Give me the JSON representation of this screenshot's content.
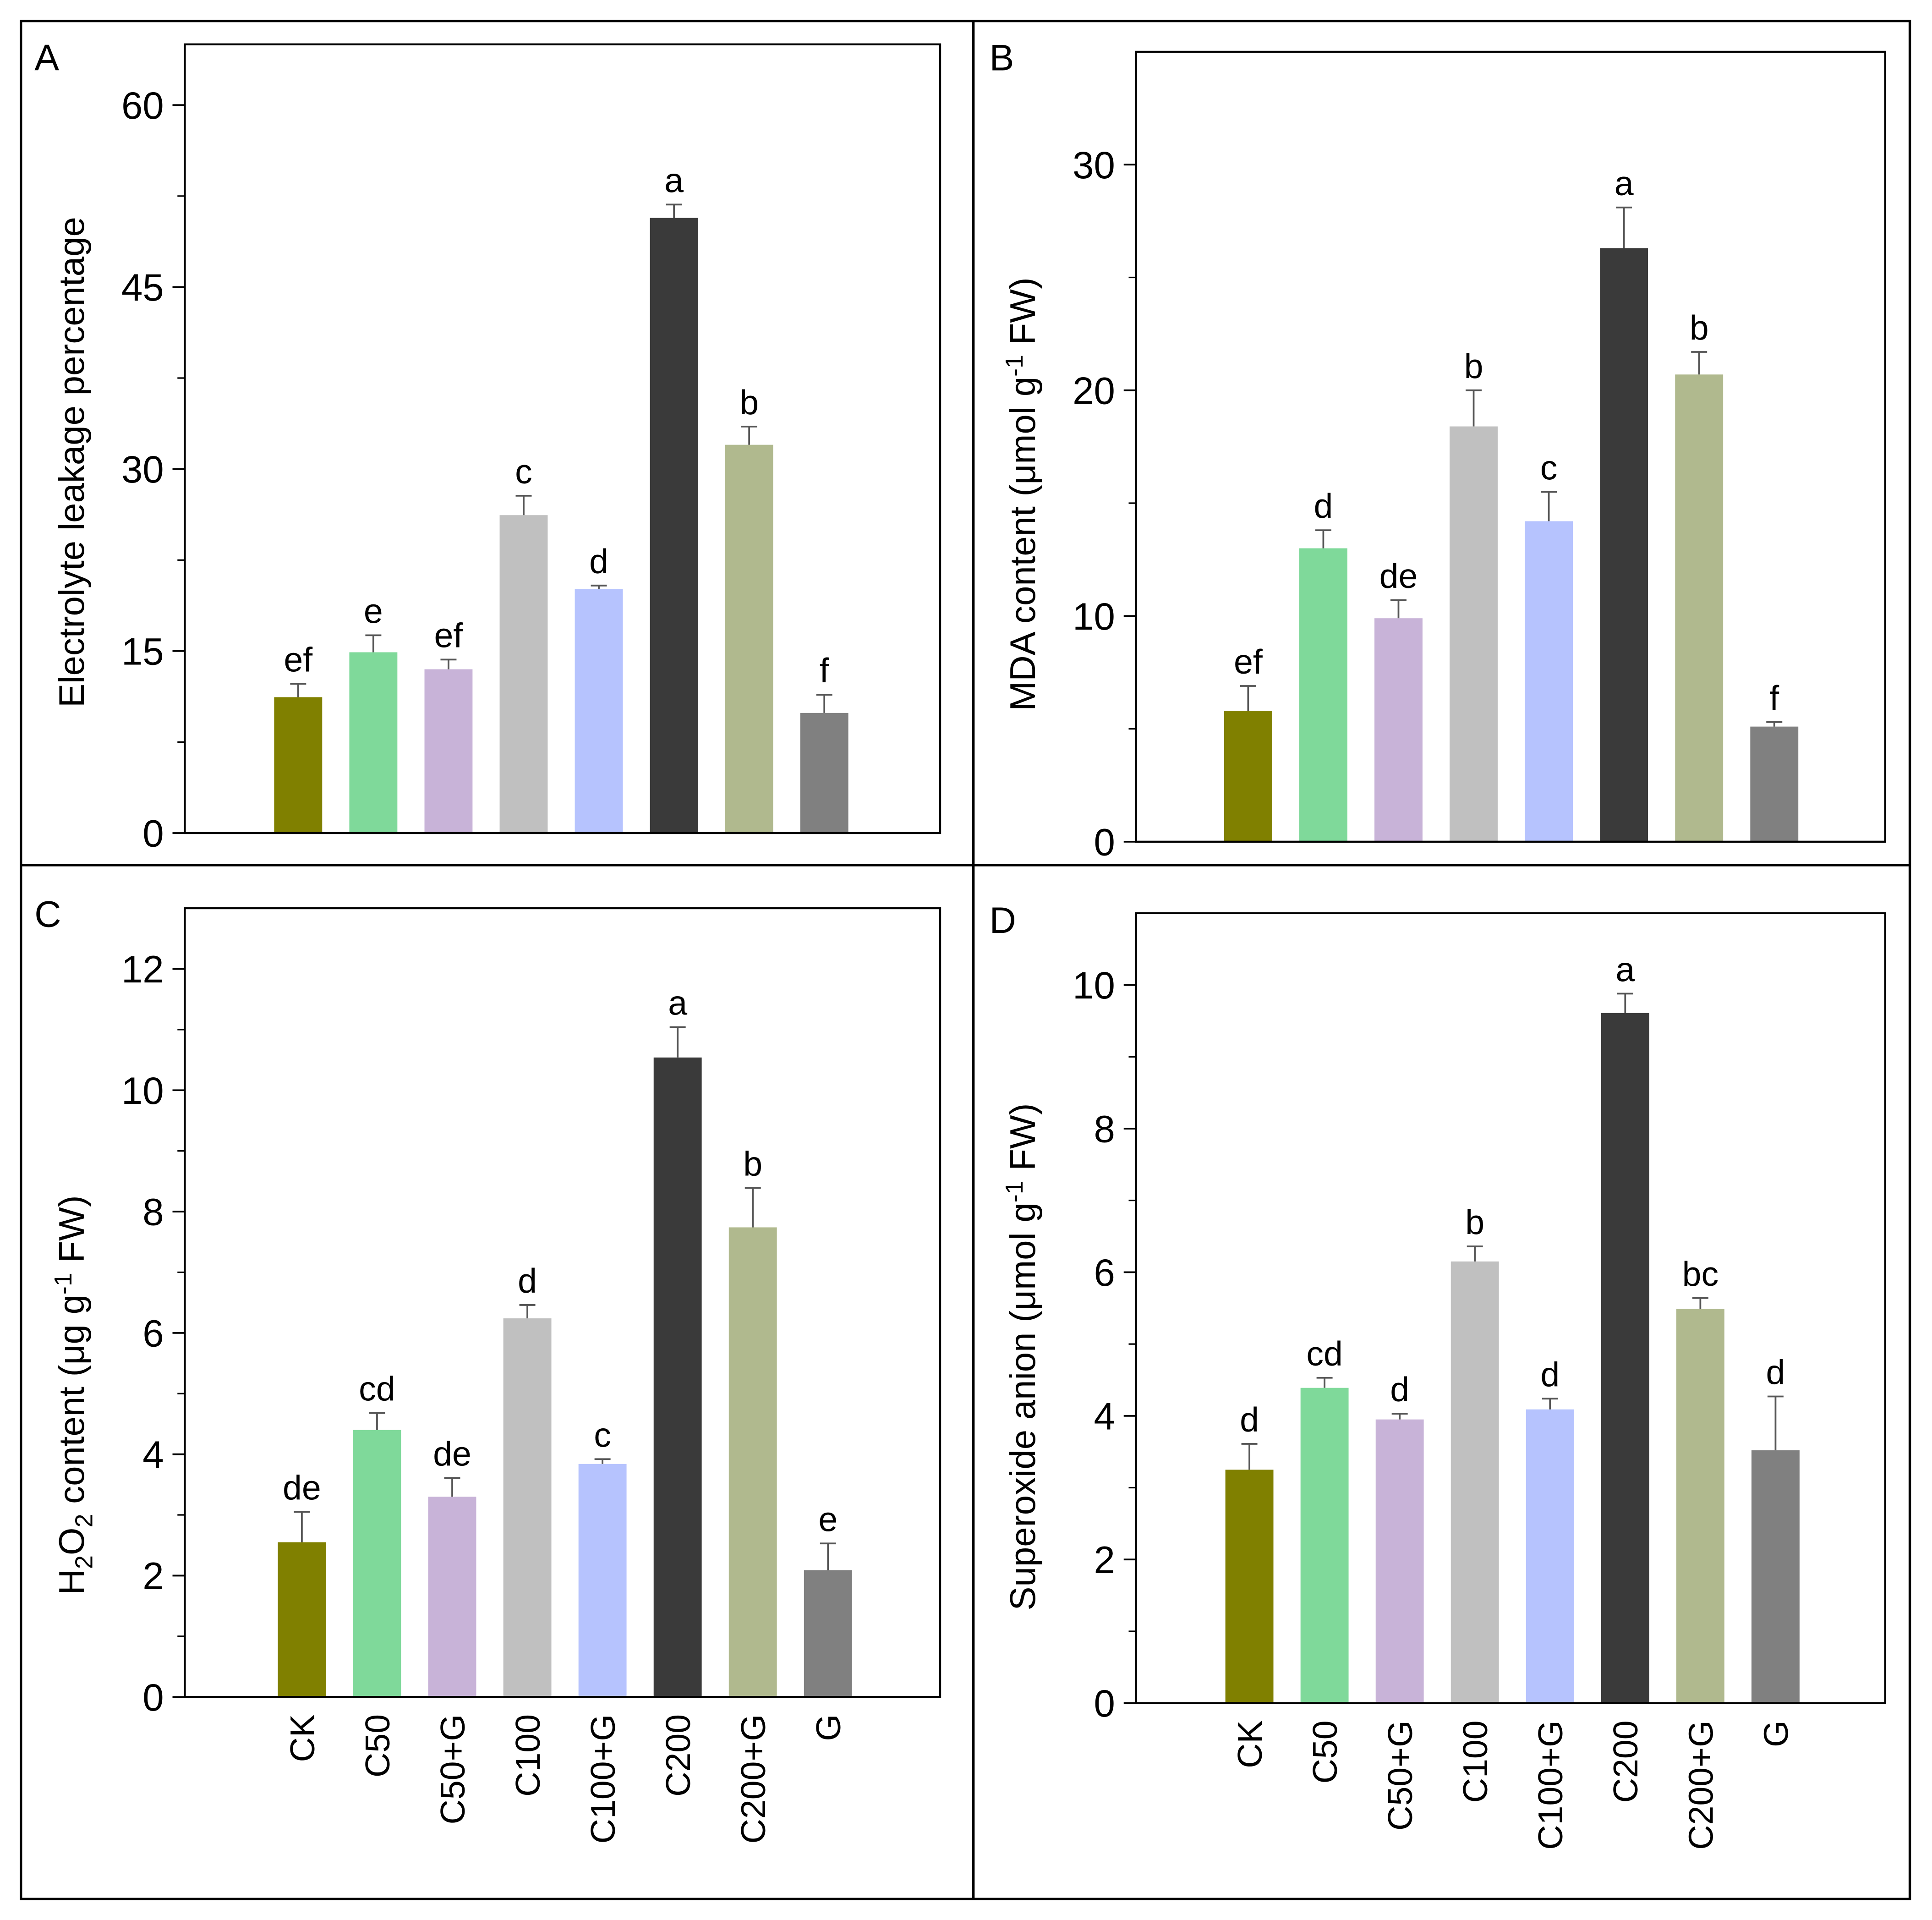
{
  "chart_data": [
    {
      "panel_label": "A",
      "type": "bar",
      "title": "",
      "xlabel": "",
      "ylabel_parts": [
        "Electrolyte leakage percentage"
      ],
      "categories": [
        "CK",
        "C50",
        "C50+G",
        "C100",
        "C100+G",
        "C200",
        "C200+G",
        "G"
      ],
      "values": [
        11.2,
        14.9,
        13.5,
        26.2,
        20.1,
        50.7,
        32.0,
        9.9
      ],
      "errors": [
        1.1,
        1.4,
        0.8,
        1.6,
        0.3,
        1.1,
        1.5,
        1.5
      ],
      "significance_letters": [
        "ef",
        "e",
        "ef",
        "c",
        "d",
        "a",
        "b",
        "f"
      ],
      "ylim": [
        0,
        65
      ],
      "yticks": [
        0,
        15,
        30,
        45,
        60
      ],
      "grid": false
    },
    {
      "panel_label": "B",
      "type": "bar",
      "title": "",
      "xlabel": "",
      "ylabel_parts": [
        "MDA content (μmol g",
        "-1",
        " FW)"
      ],
      "categories": [
        "CK",
        "C50",
        "C50+G",
        "C100",
        "C100+G",
        "C200",
        "C200+G",
        "G"
      ],
      "values": [
        5.8,
        13.0,
        9.9,
        18.4,
        14.2,
        26.3,
        20.7,
        5.1
      ],
      "errors": [
        1.1,
        0.8,
        0.8,
        1.6,
        1.3,
        1.8,
        1.0,
        0.2
      ],
      "significance_letters": [
        "ef",
        "d",
        "de",
        "b",
        "c",
        "a",
        "b",
        "f"
      ],
      "ylim": [
        0,
        35
      ],
      "yticks": [
        0,
        10,
        20,
        30
      ],
      "grid": false
    },
    {
      "panel_label": "C",
      "type": "bar",
      "title": "",
      "xlabel": "",
      "ylabel_parts": [
        "H",
        "2",
        "O",
        "2",
        " content (μg g",
        "-1",
        " FW)"
      ],
      "categories": [
        "CK",
        "C50",
        "C50+G",
        "C100",
        "C100+G",
        "C200",
        "C200+G",
        "G"
      ],
      "values": [
        2.55,
        4.4,
        3.3,
        6.24,
        3.84,
        10.54,
        7.74,
        2.09
      ],
      "errors": [
        0.5,
        0.28,
        0.31,
        0.22,
        0.08,
        0.5,
        0.65,
        0.44
      ],
      "significance_letters": [
        "de",
        "cd",
        "de",
        "d",
        "c",
        "a",
        "b",
        "e"
      ],
      "ylim": [
        0,
        13
      ],
      "yticks": [
        0,
        2,
        4,
        6,
        8,
        10,
        12
      ],
      "grid": false
    },
    {
      "panel_label": "D",
      "type": "bar",
      "title": "",
      "xlabel": "",
      "ylabel_parts": [
        "Superoxide anion (μmol g",
        "-1",
        " FW)"
      ],
      "categories": [
        "CK",
        "C50",
        "C50+G",
        "C100",
        "C100+G",
        "C200",
        "C200+G",
        "G"
      ],
      "values": [
        3.25,
        4.39,
        3.95,
        6.15,
        4.09,
        9.61,
        5.49,
        3.52
      ],
      "errors": [
        0.36,
        0.14,
        0.08,
        0.21,
        0.15,
        0.27,
        0.15,
        0.75
      ],
      "significance_letters": [
        "d",
        "cd",
        "d",
        "b",
        "d",
        "a",
        "bc",
        "d"
      ],
      "ylim": [
        0,
        11
      ],
      "yticks": [
        0,
        2,
        4,
        6,
        8,
        10
      ],
      "grid": false
    }
  ],
  "bar_colors": [
    "#808000",
    "#7fd99a",
    "#c8b3d8",
    "#c0c0c0",
    "#b6c3fe",
    "#3a3a3a",
    "#b0b98e",
    "#808080"
  ],
  "error_bar_color": "#555555",
  "frame_color": "#000000"
}
